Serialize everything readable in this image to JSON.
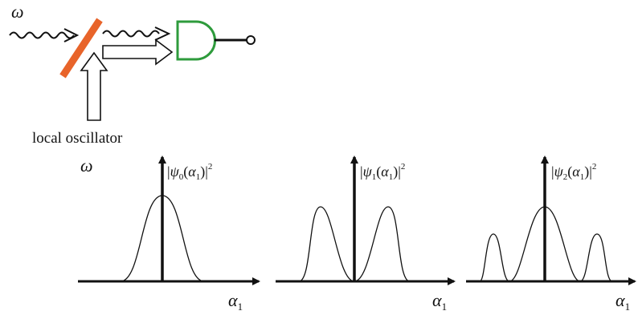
{
  "top": {
    "omega_label": "ω",
    "local_oscillator_label": "local oscillator",
    "colors": {
      "beam_splitter": "#e8642a",
      "detector": "#2e9b3c",
      "line": "#111111"
    }
  },
  "bottom": {
    "omega_label": "ω",
    "panels": [
      {
        "y_label_psi": "ψ",
        "y_label_sub": "0",
        "y_label_arg": "α",
        "y_label_arg_sub": "1",
        "y_label_power": "2",
        "x_label": "α",
        "x_label_sub": "1",
        "shape": "single-peak"
      },
      {
        "y_label_psi": "ψ",
        "y_label_sub": "1",
        "y_label_arg": "α",
        "y_label_arg_sub": "1",
        "y_label_power": "2",
        "x_label": "α",
        "x_label_sub": "1",
        "shape": "double-peak"
      },
      {
        "y_label_psi": "ψ",
        "y_label_sub": "2",
        "y_label_arg": "α",
        "y_label_arg_sub": "1",
        "y_label_power": "2",
        "x_label": "α",
        "x_label_sub": "1",
        "shape": "triple-peak"
      }
    ]
  }
}
